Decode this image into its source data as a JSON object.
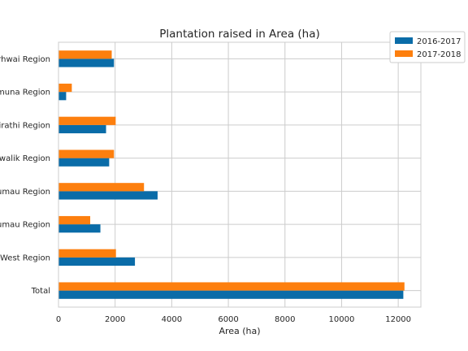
{
  "chart_data": {
    "type": "bar",
    "orientation": "horizontal",
    "title": "Plantation raised in Area (ha)",
    "xlabel": "Area (ha)",
    "ylabel": "",
    "xlim": [
      0,
      12800
    ],
    "xticks": [
      0,
      2000,
      4000,
      6000,
      8000,
      10000,
      12000
    ],
    "grid": true,
    "legend_position": "top-right",
    "categories": [
      "Garhwai Region",
      "Yamuna Region",
      "Bhagirathi Region",
      "Shivalik Region",
      "Kumau Region",
      "North Kumau Region",
      "West Region",
      "Total"
    ],
    "category_labels_visible": [
      "rhwai Region",
      "muna Region",
      "irathi Region",
      "walik Region",
      "umau Region",
      "umau Region",
      "West Region",
      "Total"
    ],
    "series": [
      {
        "name": "2016-2017",
        "color": "#0a6ca8",
        "values": [
          1960,
          270,
          1680,
          1790,
          3500,
          1480,
          2700,
          12180
        ]
      },
      {
        "name": "2017-2018",
        "color": "#fd7f0e",
        "values": [
          1880,
          470,
          2020,
          1960,
          3020,
          1120,
          2030,
          12220
        ]
      }
    ]
  }
}
